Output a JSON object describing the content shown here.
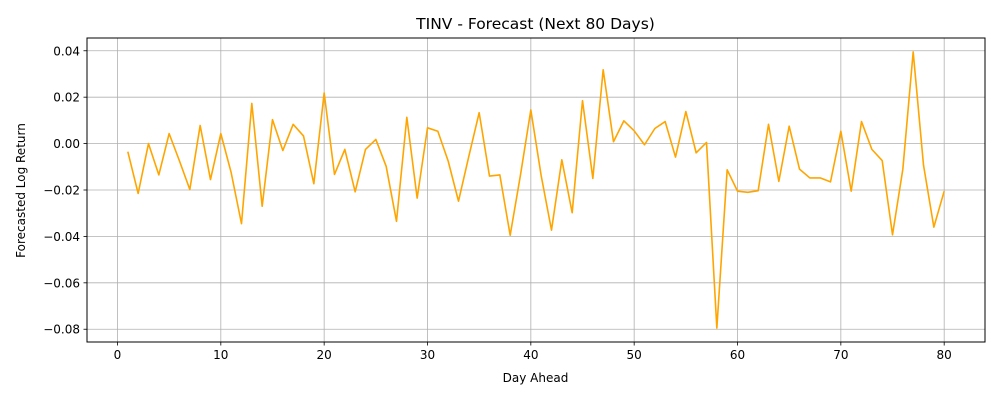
{
  "chart_data": {
    "type": "line",
    "title": "TINV - Forecast (Next 80 Days)",
    "xlabel": "Day Ahead",
    "ylabel": "Forecasted Log Return",
    "xlim": [
      -2.95,
      83.95
    ],
    "ylim": [
      -0.0855,
      0.0455
    ],
    "xticks": [
      0,
      10,
      20,
      30,
      40,
      50,
      60,
      70,
      80
    ],
    "xtick_labels": [
      "0",
      "10",
      "20",
      "30",
      "40",
      "50",
      "60",
      "70",
      "80"
    ],
    "yticks": [
      0.04,
      0.02,
      0.0,
      -0.02,
      -0.04,
      -0.06,
      -0.08
    ],
    "ytick_labels": [
      "0.04",
      "0.02",
      "0.00",
      "−0.02",
      "−0.04",
      "−0.06",
      "−0.08"
    ],
    "grid": true,
    "color": "#ffa500",
    "series": [
      {
        "x": [
          1,
          2,
          3,
          4,
          5,
          6,
          7,
          8,
          9,
          10,
          11,
          12,
          13,
          14,
          15,
          16,
          17,
          18,
          19,
          20,
          21,
          22,
          23,
          24,
          25,
          26,
          27,
          28,
          29,
          30,
          31,
          32,
          33,
          34,
          35,
          36,
          37,
          38,
          39,
          40,
          41,
          42,
          43,
          44,
          45,
          46,
          47,
          48,
          49,
          50,
          51,
          52,
          53,
          54,
          55,
          56,
          57,
          58,
          59,
          60,
          61,
          62,
          63,
          64,
          65,
          66,
          67,
          68,
          69,
          70,
          71,
          72,
          73,
          74,
          75,
          76,
          77,
          78,
          79,
          80
        ],
        "values": [
          -0.0035,
          -0.0215,
          0.0,
          -0.0135,
          0.0043,
          -0.0075,
          -0.0198,
          0.0078,
          -0.0155,
          0.0043,
          -0.0125,
          -0.0345,
          0.0173,
          -0.027,
          0.0103,
          -0.003,
          0.0083,
          0.0033,
          -0.0173,
          0.0218,
          -0.0133,
          -0.0025,
          -0.0208,
          -0.0025,
          0.0018,
          -0.0098,
          -0.0335,
          0.0113,
          -0.0235,
          0.0068,
          0.0053,
          -0.0075,
          -0.0248,
          -0.0055,
          0.0133,
          -0.014,
          -0.0135,
          -0.0395,
          -0.0135,
          0.0145,
          -0.0138,
          -0.0373,
          -0.007,
          -0.0298,
          0.0185,
          -0.015,
          0.0318,
          0.0008,
          0.0098,
          0.0055,
          -0.0005,
          0.0065,
          0.0095,
          -0.0058,
          0.0138,
          -0.004,
          0.0005,
          -0.0795,
          -0.0113,
          -0.0205,
          -0.021,
          -0.0203,
          0.0083,
          -0.0163,
          0.0075,
          -0.011,
          -0.0148,
          -0.0148,
          -0.0165,
          0.0053,
          -0.0205,
          0.0095,
          -0.0025,
          -0.0073,
          -0.0393,
          -0.011,
          0.0395,
          -0.0093,
          -0.036,
          -0.0205
        ]
      }
    ]
  }
}
